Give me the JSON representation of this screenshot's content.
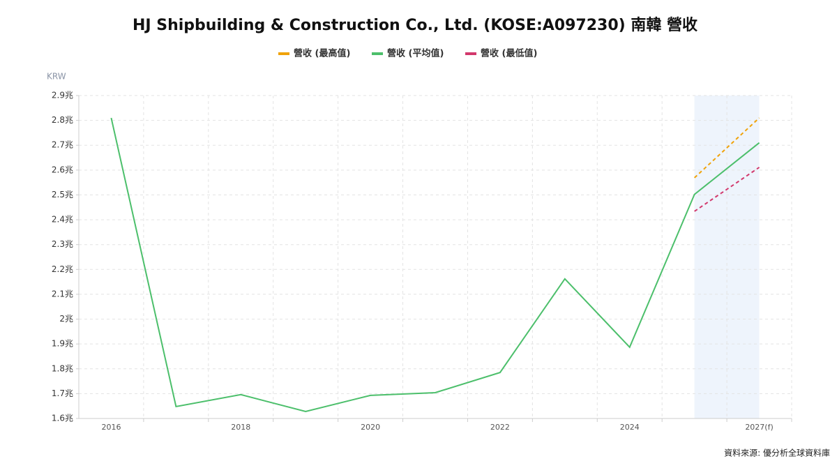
{
  "chart_data": {
    "type": "line",
    "title": "HJ Shipbuilding & Construction Co., Ltd. (KOSE:A097230) 南韓 營收",
    "y_unit": "KRW",
    "source": "資料來源: 優分析全球資料庫",
    "categories": [
      "2016",
      null,
      "2018",
      null,
      "2020",
      null,
      "2022",
      null,
      "2024",
      null,
      "2027(f)"
    ],
    "series": [
      {
        "name": "營收 (最高值)",
        "color": "#f0a30a",
        "dashed": true,
        "values": [
          null,
          null,
          null,
          null,
          null,
          null,
          null,
          null,
          null,
          2.569,
          2.81
        ]
      },
      {
        "name": "營收 (平均值)",
        "color": "#4cbf6b",
        "dashed": false,
        "values": [
          2.81,
          1.648,
          1.696,
          1.628,
          1.693,
          1.704,
          1.785,
          2.162,
          1.887,
          2.502,
          2.71
        ]
      },
      {
        "name": "營收 (最低值)",
        "color": "#d2386c",
        "dashed": true,
        "values": [
          null,
          null,
          null,
          null,
          null,
          null,
          null,
          null,
          null,
          2.434,
          2.611
        ]
      }
    ],
    "ylim": [
      1.6,
      2.9
    ],
    "yticks": [
      {
        "value": 1.6,
        "label": "1.6兆"
      },
      {
        "value": 1.7,
        "label": "1.7兆"
      },
      {
        "value": 1.8,
        "label": "1.8兆"
      },
      {
        "value": 1.9,
        "label": "1.9兆"
      },
      {
        "value": 2.0,
        "label": "2兆"
      },
      {
        "value": 2.1,
        "label": "2.1兆"
      },
      {
        "value": 2.2,
        "label": "2.2兆"
      },
      {
        "value": 2.3,
        "label": "2.3兆"
      },
      {
        "value": 2.4,
        "label": "2.4兆"
      },
      {
        "value": 2.5,
        "label": "2.5兆"
      },
      {
        "value": 2.6,
        "label": "2.6兆"
      },
      {
        "value": 2.7,
        "label": "2.7兆"
      },
      {
        "value": 2.8,
        "label": "2.8兆"
      },
      {
        "value": 2.9,
        "label": "2.9兆"
      }
    ],
    "grid": true,
    "legend": "top"
  }
}
